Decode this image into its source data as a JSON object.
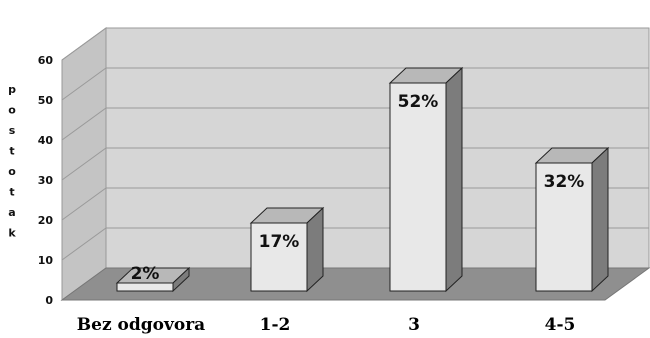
{
  "chart_data": {
    "type": "bar",
    "categories": [
      "Bez odgovora",
      "1-2",
      "3",
      "4-5"
    ],
    "values": [
      2,
      17,
      52,
      32
    ],
    "data_labels": [
      "2%",
      "17%",
      "52%",
      "32%"
    ],
    "ylabel": "postotak",
    "ylim": [
      0,
      60
    ],
    "yticks": [
      "0",
      "10",
      "20",
      "30",
      "40",
      "50",
      "60"
    ],
    "grid": true,
    "style": "3d-columns",
    "colors": {
      "wall": "#d6d6d6",
      "floor": "#8f8f8f",
      "gridline": "#9a9a9a",
      "bar_front": "#e8e8e8",
      "bar_top": "#b8b8b8",
      "bar_side": "#7c7c7c",
      "outline": "#222222"
    }
  }
}
